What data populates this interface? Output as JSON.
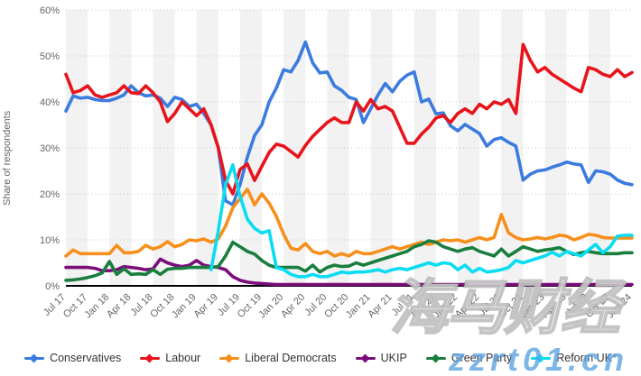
{
  "watermarks": {
    "cjk": "海马财经",
    "domain": "zzrt01.cn"
  },
  "chart_data": {
    "type": "line",
    "title": "",
    "ylabel": "Share of respondents",
    "xlabel": "",
    "ylim": [
      0,
      60
    ],
    "y_ticks": [
      0,
      10,
      20,
      30,
      40,
      50,
      60
    ],
    "y_tick_labels": [
      "0%",
      "10%",
      "20%",
      "30%",
      "40%",
      "50%",
      "60%"
    ],
    "grid": "dotted horizontal, alternating quarterly vertical bands",
    "legend_position": "bottom",
    "months": 79,
    "x_tick_every_months": 3,
    "x_tick_labels": [
      "Jul 17",
      "Oct 17",
      "Jan 18",
      "Apr 18",
      "Jul 18",
      "Oct 18",
      "Jan 19",
      "Apr 19",
      "Jul 19",
      "Oct 19",
      "Jan 20",
      "Apr 20",
      "Jul 20",
      "Oct 20",
      "Jan 21",
      "Apr 21",
      "Jul 21",
      "Oct 21",
      "Jan 22",
      "Apr 22",
      "Jul 22",
      "Oct 22",
      "Jan 23",
      "Apr 23",
      "Jul 23",
      "Oct 23",
      "Jan 24"
    ],
    "series": [
      {
        "name": "Conservatives",
        "color": "#3c7be0",
        "values": [
          38,
          41.3,
          40.8,
          41,
          40.5,
          40.3,
          40.3,
          40.8,
          41.5,
          43.5,
          42,
          41.3,
          41.5,
          40.8,
          39,
          41,
          40.5,
          39,
          39.5,
          37.5,
          35,
          30,
          18.5,
          17.6,
          22,
          28,
          32.7,
          35,
          40,
          43,
          47,
          46.5,
          49,
          53,
          48.5,
          46.3,
          46.5,
          43.5,
          42.5,
          41,
          40.5,
          35.5,
          38.5,
          41.5,
          44,
          42.2,
          44.5,
          45.8,
          46.5,
          40,
          40.6,
          37.4,
          37.6,
          34.8,
          33.7,
          35.1,
          34.1,
          33.1,
          30.4,
          31.8,
          32.2,
          31.2,
          30.4,
          23,
          24.3,
          25,
          25.2,
          25.8,
          26.3,
          26.9,
          26.5,
          26.3,
          22.5,
          25,
          24.8,
          24.3,
          23,
          22.3,
          22
        ]
      },
      {
        "name": "Labour",
        "color": "#e8141c",
        "values": [
          46,
          42,
          42.5,
          43.5,
          41.5,
          41,
          41.5,
          42,
          43.5,
          42,
          41.8,
          43.5,
          42,
          40,
          35.7,
          37.5,
          40,
          38.5,
          37,
          38.5,
          35,
          30,
          23,
          20,
          25.3,
          26.5,
          22.9,
          26,
          29,
          30.8,
          30.4,
          29.2,
          28,
          30.5,
          32.5,
          34,
          35.5,
          36.5,
          35.5,
          35.5,
          40,
          38,
          40.5,
          38.5,
          39,
          38,
          34.5,
          31,
          31,
          33,
          34.5,
          36.5,
          37,
          35.5,
          37.5,
          38.5,
          37.5,
          39.5,
          38.5,
          40,
          39.5,
          40.5,
          37.5,
          52.5,
          49,
          46.5,
          47.5,
          46,
          45,
          44,
          43,
          42.2,
          47.5,
          47,
          46,
          45.5,
          47,
          45.5,
          46.4
        ]
      },
      {
        "name": "Liberal Democrats",
        "color": "#f78f1c",
        "values": [
          6.5,
          7.8,
          7,
          7,
          7,
          7,
          7,
          8.8,
          7.2,
          7.2,
          7.5,
          8.8,
          8,
          8.5,
          9.6,
          8.5,
          9,
          10,
          9.8,
          10.2,
          9.5,
          10.2,
          13,
          17,
          19,
          21,
          17.6,
          20,
          18,
          15.1,
          11.2,
          8.2,
          7.8,
          9.2,
          7.5,
          7,
          7.5,
          6.5,
          7,
          6.5,
          7.5,
          7,
          7,
          7.5,
          8,
          8.5,
          8,
          8.5,
          9,
          9.5,
          9,
          9.5,
          10,
          9.8,
          10,
          9.5,
          10,
          10.5,
          10,
          10.5,
          15.5,
          11.5,
          10.5,
          10,
          10.2,
          10.5,
          10.2,
          10.5,
          11,
          10.8,
          10,
          10.5,
          11.2,
          11,
          10.5,
          10.4,
          10.4,
          10.4,
          10.4
        ]
      },
      {
        "name": "UKIP",
        "color": "#7b0d7b",
        "values": [
          4,
          4,
          4,
          4,
          3.8,
          3.3,
          3.3,
          3.5,
          4.2,
          4,
          3.8,
          3.5,
          3.7,
          5.8,
          5,
          4.5,
          4.2,
          4.5,
          5.5,
          4.5,
          4.2,
          4,
          3.5,
          2,
          1.2,
          0.8,
          0.6,
          0.5,
          0.4,
          0.3,
          0.3,
          0.3,
          0.3,
          0.3,
          0.3,
          0.3,
          0.3,
          0.3,
          0.3,
          0.3,
          0.3,
          0.3,
          0.3,
          0.3,
          0.3,
          0.3,
          0.3,
          0.3,
          0.3,
          0.3,
          0.3,
          0.3,
          0.3,
          0.3,
          0.3,
          0.3,
          0.3,
          0.3,
          0.3,
          0.3,
          0.3,
          0.3,
          0.3,
          0.3,
          0.3,
          0.3,
          0.3,
          0.3,
          0.3,
          0.3,
          0.3,
          0.3,
          0.3,
          0.3,
          0.3,
          0.3,
          0.3,
          0.3,
          0.3
        ]
      },
      {
        "name": "Green Party",
        "color": "#1a7e3e",
        "values": [
          1.2,
          1.3,
          1.5,
          1.8,
          2.2,
          2.8,
          5.3,
          2.5,
          3.7,
          2.5,
          2.6,
          2.5,
          3.5,
          2.5,
          3.6,
          3.8,
          3.8,
          4,
          4,
          4,
          4,
          4.2,
          6.5,
          9.5,
          8.5,
          7.5,
          6.9,
          5.5,
          4.5,
          4,
          4,
          4,
          4,
          3.2,
          4.5,
          3,
          4,
          4.5,
          4.2,
          4.3,
          5,
          4.5,
          5,
          5.5,
          6,
          6.5,
          7,
          7.5,
          8.5,
          9,
          9.8,
          9.5,
          8.5,
          8,
          7.5,
          8,
          8.3,
          7.5,
          7,
          6.5,
          8,
          6.5,
          7.5,
          8.5,
          8,
          7.5,
          7.8,
          8,
          8.3,
          7.5,
          6.8,
          7.2,
          7.5,
          7.2,
          7,
          7,
          7,
          7.2,
          7.2
        ]
      },
      {
        "name": "Reform UK*",
        "color": "#0adcf2",
        "values": [
          null,
          null,
          null,
          null,
          null,
          null,
          null,
          null,
          null,
          null,
          null,
          null,
          null,
          null,
          null,
          null,
          null,
          null,
          null,
          null,
          3.5,
          12,
          22,
          26.3,
          19.5,
          14.5,
          12.5,
          11.5,
          12,
          4,
          3.5,
          2.5,
          2,
          2,
          2.5,
          2,
          2,
          2.5,
          3,
          2.8,
          3,
          3,
          3.2,
          3.5,
          3,
          3.5,
          3.8,
          3.5,
          4,
          4.5,
          5,
          4.5,
          5,
          4.8,
          3.5,
          4.5,
          3,
          3.8,
          3,
          3.2,
          3.5,
          4,
          5.5,
          5,
          5.5,
          6,
          6.5,
          7.3,
          6.5,
          7.5,
          7,
          6.5,
          7.8,
          9,
          7.2,
          8.5,
          10.8,
          11,
          11
        ]
      }
    ],
    "style": {
      "band_color": "#f2f2f2",
      "gridline_color": "#c8c8c8",
      "zero_line_color": "#000000",
      "tick_text_color": "#666666",
      "legend_text_color": "#333333"
    }
  }
}
